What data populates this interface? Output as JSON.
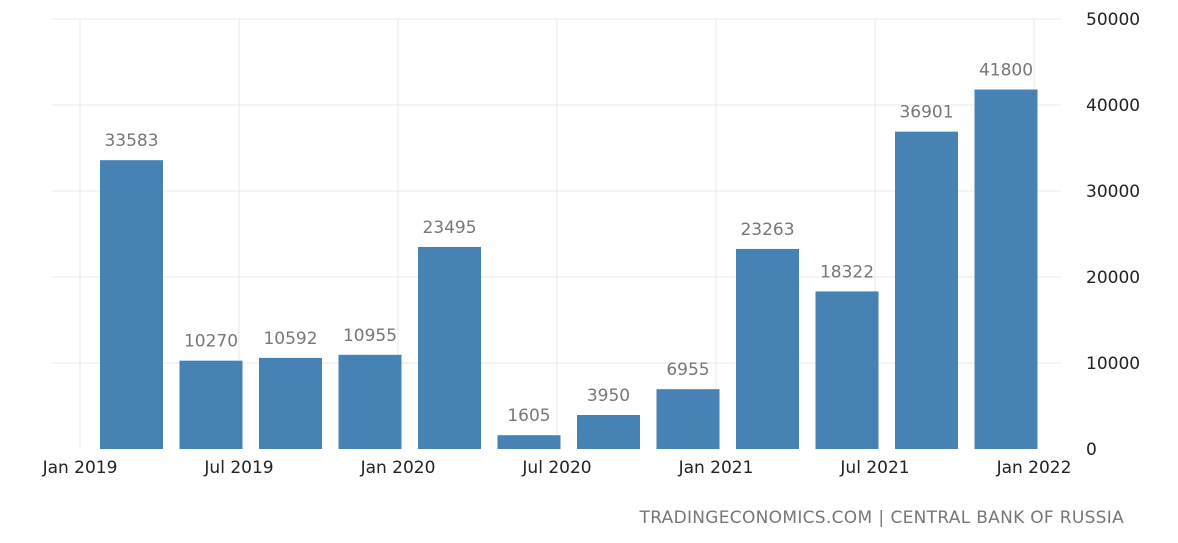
{
  "chart_data": {
    "type": "bar",
    "categories": [
      "Q1 2019",
      "Q2 2019",
      "Q3 2019",
      "Q4 2019",
      "Q1 2020",
      "Q2 2020",
      "Q3 2020",
      "Q4 2020",
      "Q1 2021",
      "Q2 2021",
      "Q3 2021",
      "Q4 2021"
    ],
    "values": [
      33583,
      10270,
      10592,
      10955,
      23495,
      1605,
      3950,
      6955,
      23263,
      18322,
      36901,
      41800
    ],
    "x_tick_labels": [
      "Jan 2019",
      "Jul 2019",
      "Jan 2020",
      "Jul 2020",
      "Jan 2021",
      "Jul 2021",
      "Jan 2022"
    ],
    "y_ticks": [
      0,
      10000,
      20000,
      30000,
      40000,
      50000
    ],
    "ylim": [
      0,
      50000
    ],
    "y_axis_side": "right",
    "grid": true,
    "data_labels": true,
    "bar_color": "#4682b4"
  },
  "footer": {
    "source_left": "TRADINGECONOMICS.COM",
    "separator": "|",
    "source_right": "CENTRAL BANK OF RUSSIA"
  },
  "colors": {
    "grid": "#e8e8e8",
    "axis_text": "#222222",
    "label_text": "#777777"
  }
}
